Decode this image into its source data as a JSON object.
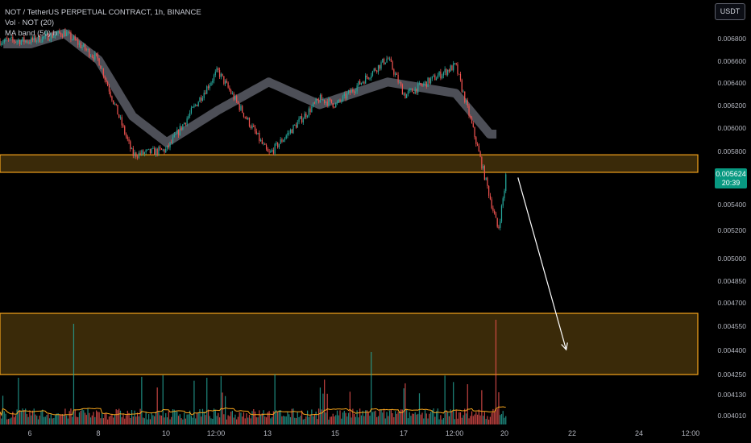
{
  "header": {
    "symbol_line": "NOT / TetherUS PERPETUAL CONTRACT, 1h, BINANCE",
    "volume_line": "Vol · NOT (20)",
    "ma_line": "MA band (50) h"
  },
  "currency_button": "USDT",
  "last_price": {
    "value": "0.005624",
    "countdown": "20:39"
  },
  "colors": {
    "background": "#000000",
    "bullish": "#26a69a",
    "bearish": "#ef5350",
    "zone_border": "#f7a51c",
    "zone_fill": "#3a2a09",
    "ma_band": "#5a5d66",
    "volume_ma": "#f7a51c",
    "arrow": "#ffffff",
    "price_tag": "#089981"
  },
  "chart_data": {
    "type": "candlestick",
    "title": "NOT / TetherUS PERPETUAL CONTRACT, 1h, BINANCE",
    "y_scale": "log",
    "y_axis_ticks": [
      "0.006800",
      "0.006600",
      "0.006400",
      "0.006200",
      "0.006000",
      "0.005800",
      "0.005600",
      "0.005400",
      "0.005200",
      "0.005000",
      "0.004850",
      "0.004700",
      "0.004550",
      "0.004400",
      "0.004250",
      "0.004130",
      "0.004010"
    ],
    "x_axis_ticks": [
      "6",
      "8",
      "10",
      "12:00",
      "13",
      "15",
      "17",
      "12:00",
      "20",
      "22",
      "24",
      "12:00"
    ],
    "ylim": [
      0.004,
      0.007
    ],
    "price_path_keyframes": [
      {
        "x": "6",
        "price": 0.00678
      },
      {
        "x": "7",
        "price": 0.00686
      },
      {
        "x": "8",
        "price": 0.0066
      },
      {
        "x": "9",
        "price": 0.00578
      },
      {
        "x": "10",
        "price": 0.00582
      },
      {
        "x": "11 12:00",
        "price": 0.0065
      },
      {
        "x": "13",
        "price": 0.00578
      },
      {
        "x": "14 12:00",
        "price": 0.00625
      },
      {
        "x": "15",
        "price": 0.0062
      },
      {
        "x": "16 12:00",
        "price": 0.00662
      },
      {
        "x": "17",
        "price": 0.00628
      },
      {
        "x": "18 12:00",
        "price": 0.00655
      },
      {
        "x": "19",
        "price": 0.006
      },
      {
        "x": "19 18:00",
        "price": 0.0052
      },
      {
        "x": "20",
        "price": 0.005624
      }
    ],
    "ma_band_keyframes": [
      {
        "x": "6",
        "price": 0.00675
      },
      {
        "x": "7",
        "price": 0.00685
      },
      {
        "x": "8",
        "price": 0.0066
      },
      {
        "x": "9",
        "price": 0.0061
      },
      {
        "x": "10",
        "price": 0.00588
      },
      {
        "x": "11 12:00",
        "price": 0.00615
      },
      {
        "x": "13",
        "price": 0.0064
      },
      {
        "x": "14 12:00",
        "price": 0.0062
      },
      {
        "x": "16 12:00",
        "price": 0.0064
      },
      {
        "x": "18 12:00",
        "price": 0.0063
      },
      {
        "x": "19 12:00",
        "price": 0.00595
      }
    ],
    "zones": [
      {
        "name": "support-zone",
        "from_price": 0.00564,
        "to_price": 0.00578
      },
      {
        "name": "target-zone",
        "from_price": 0.00425,
        "to_price": 0.00463
      }
    ],
    "projection_arrow": {
      "from": {
        "x": "20",
        "price": 0.005624
      },
      "to": {
        "x": "21 18:00",
        "price": 0.0044
      }
    },
    "last_price": 0.005624
  }
}
